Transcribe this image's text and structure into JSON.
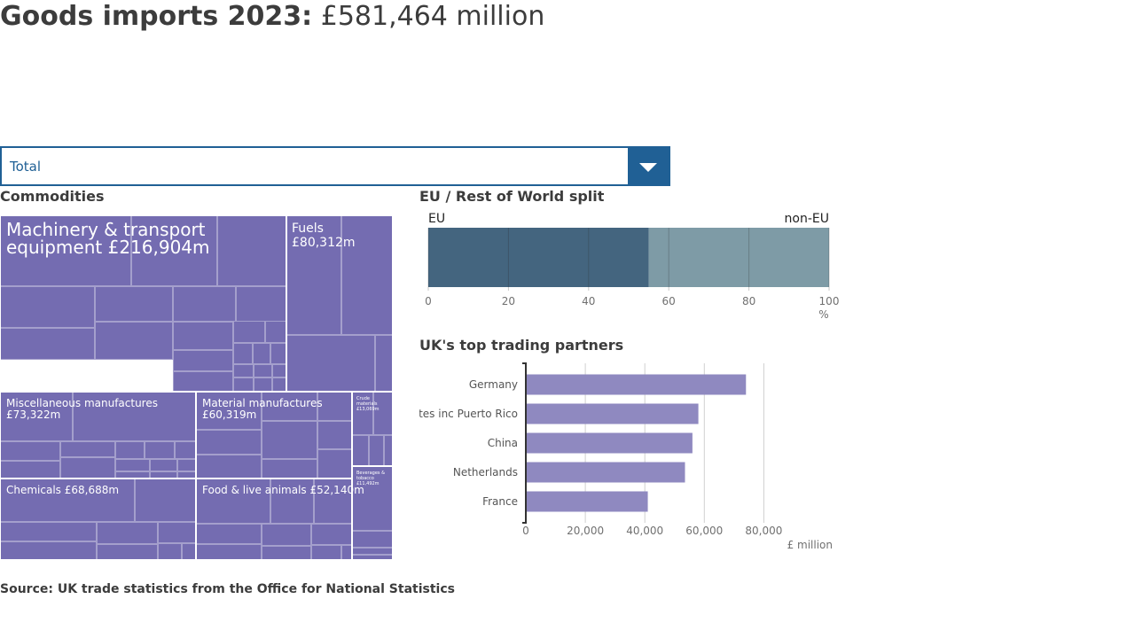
{
  "headline": {
    "title": "Goods imports 2023:",
    "value": "£581,464 million"
  },
  "selector": {
    "value": "Total",
    "icon": "chevron-down-icon"
  },
  "sections": {
    "commodities": "Commodities",
    "eu_split": "EU / Rest of World split",
    "partners": "UK's top trading partners"
  },
  "source": "Source: UK trade statistics from the Office for National Statistics",
  "colors": {
    "treemap": "#746cb1",
    "eu": "#44657f",
    "non_eu": "#7e9ba6",
    "partners_bar": "#8f89c0",
    "accent": "#206095"
  },
  "chart_data": [
    {
      "type": "treemap",
      "title": "Commodities",
      "items": [
        {
          "name": "Machinery & transport equipment",
          "label": "Machinery & transport equipment £216,904m",
          "value": 216904
        },
        {
          "name": "Fuels",
          "label": "Fuels £80,312m",
          "value": 80312
        },
        {
          "name": "Miscellaneous manufactures",
          "label": "Miscellaneous manufactures £73,322m",
          "value": 73322
        },
        {
          "name": "Material manufactures",
          "label": "Material manufactures £60,319m",
          "value": 60319
        },
        {
          "name": "Chemicals",
          "label": "Chemicals £68,688m",
          "value": 68688
        },
        {
          "name": "Food & live animals",
          "label": "Food & live animals £52,140m",
          "value": 52140
        },
        {
          "name": "Crude materials",
          "label": "Crude materials £13,069m",
          "value": 13069
        },
        {
          "name": "Beverages & tobacco",
          "label": "Beverages & tobacco £11,492m",
          "value": 11492
        }
      ]
    },
    {
      "type": "bar",
      "title": "EU / Rest of World split",
      "orientation": "horizontal-stacked",
      "series": [
        {
          "name": "EU",
          "value": 55
        },
        {
          "name": "non-EU",
          "value": 45
        }
      ],
      "xlim": [
        0,
        100
      ],
      "ticks": [
        0,
        20,
        40,
        60,
        80,
        100
      ],
      "xlabel": "%",
      "grid": true
    },
    {
      "type": "bar",
      "title": "UK's top trading partners",
      "orientation": "horizontal",
      "categories": [
        "Germany",
        "United States inc Puerto Rico",
        "China",
        "Netherlands",
        "France"
      ],
      "values": [
        74000,
        58000,
        56000,
        53500,
        41000
      ],
      "xlim": [
        0,
        100000
      ],
      "ticks": [
        0,
        20000,
        40000,
        60000,
        80000
      ],
      "tick_labels": [
        "0",
        "20,000",
        "40,000",
        "60,000",
        "80,000"
      ],
      "xlabel": "£ million",
      "grid": true
    }
  ]
}
